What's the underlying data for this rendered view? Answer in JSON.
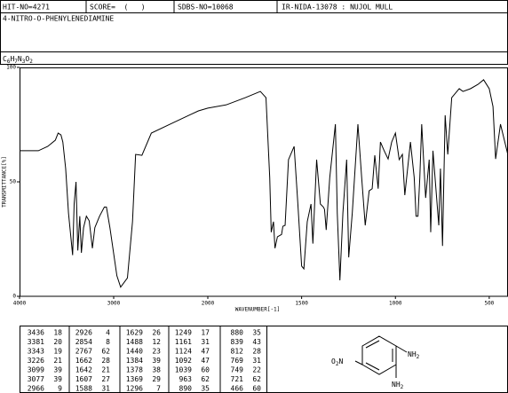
{
  "header": {
    "hit_no": "HIT-NO=4271",
    "score": "SCORE=  (   )",
    "sdbs_no": "SDBS-NO=10068",
    "method": "IR-NIDA-13078 : NUJOL MULL",
    "compound": "4-NITRO-O-PHENYLENEDIAMINE",
    "formula": "C6H7N3O2"
  },
  "chart_data": {
    "type": "line",
    "xlabel": "WAVENUMBER[-1]",
    "ylabel": "TRANSMITTANCE[%]",
    "color": "#000000",
    "xlim": [
      4000,
      400
    ],
    "ylim": [
      0,
      100
    ],
    "xticks": [
      4000,
      3000,
      2000,
      1500,
      1000,
      500
    ],
    "yticks": [
      0,
      50,
      100
    ],
    "x": [
      4000,
      3800,
      3700,
      3620,
      3590,
      3560,
      3540,
      3510,
      3480,
      3436,
      3420,
      3400,
      3381,
      3360,
      3343,
      3320,
      3290,
      3260,
      3226,
      3200,
      3150,
      3099,
      3077,
      3040,
      2966,
      2926,
      2854,
      2800,
      2767,
      2700,
      2600,
      2400,
      2200,
      2100,
      2000,
      1900,
      1800,
      1720,
      1690,
      1670,
      1662,
      1650,
      1642,
      1629,
      1607,
      1600,
      1588,
      1570,
      1540,
      1520,
      1500,
      1488,
      1470,
      1450,
      1440,
      1420,
      1400,
      1384,
      1378,
      1369,
      1350,
      1320,
      1310,
      1296,
      1280,
      1260,
      1249,
      1230,
      1200,
      1180,
      1161,
      1140,
      1124,
      1110,
      1092,
      1080,
      1060,
      1039,
      1020,
      1000,
      980,
      963,
      950,
      920,
      900,
      890,
      880,
      870,
      860,
      839,
      820,
      812,
      800,
      769,
      760,
      749,
      735,
      721,
      700,
      660,
      640,
      600,
      560,
      530,
      500,
      480,
      466,
      440,
      400
    ],
    "values": [
      63.6,
      63.6,
      65.5,
      68.2,
      71.3,
      70.5,
      67.4,
      55.8,
      36.4,
      18,
      40.3,
      50,
      20,
      35,
      19,
      30,
      35,
      33,
      21,
      30,
      35,
      39,
      39,
      30,
      9,
      4,
      8,
      32.6,
      62,
      61.6,
      71.3,
      75.2,
      79.1,
      81,
      82.2,
      83.7,
      86.8,
      89.5,
      86.8,
      51.9,
      28,
      32.6,
      21,
      26,
      27,
      30.6,
      31,
      59.7,
      65.5,
      40.3,
      13.2,
      12,
      32.6,
      40.3,
      23,
      59.7,
      40.3,
      39,
      38,
      29,
      51.9,
      75.2,
      36.4,
      7,
      36.4,
      59.7,
      17,
      36.4,
      75.2,
      51.9,
      31,
      46.1,
      47,
      61.6,
      47,
      67.4,
      63.6,
      60,
      67.4,
      71.3,
      59.7,
      62,
      44.2,
      67.4,
      51.9,
      35,
      35,
      51.9,
      75.2,
      43,
      59.7,
      28,
      63.6,
      31,
      55.8,
      22,
      79.1,
      62,
      86.8,
      90.7,
      89.5,
      90.7,
      92.6,
      94.6,
      90.7,
      82.9,
      60,
      75.2,
      61.6
    ]
  },
  "peak_table": [
    [
      [
        3436,
        18
      ],
      [
        3381,
        20
      ],
      [
        3343,
        19
      ],
      [
        3226,
        21
      ],
      [
        3099,
        39
      ],
      [
        3077,
        39
      ],
      [
        2966,
        9
      ]
    ],
    [
      [
        2926,
        4
      ],
      [
        2854,
        8
      ],
      [
        2767,
        62
      ],
      [
        1662,
        28
      ],
      [
        1642,
        21
      ],
      [
        1607,
        27
      ],
      [
        1588,
        31
      ]
    ],
    [
      [
        1629,
        26
      ],
      [
        1488,
        12
      ],
      [
        1440,
        23
      ],
      [
        1384,
        39
      ],
      [
        1378,
        38
      ],
      [
        1369,
        29
      ],
      [
        1296,
        7
      ]
    ],
    [
      [
        1249,
        17
      ],
      [
        1161,
        31
      ],
      [
        1124,
        47
      ],
      [
        1092,
        47
      ],
      [
        1039,
        60
      ],
      [
        963,
        62
      ],
      [
        890,
        35
      ]
    ],
    [
      [
        880,
        35
      ],
      [
        839,
        43
      ],
      [
        812,
        28
      ],
      [
        769,
        31
      ],
      [
        749,
        22
      ],
      [
        721,
        62
      ],
      [
        466,
        60
      ]
    ]
  ],
  "structure": {
    "left_group": "O2N",
    "top_group": "NH2",
    "bottom_group": "NH2"
  }
}
